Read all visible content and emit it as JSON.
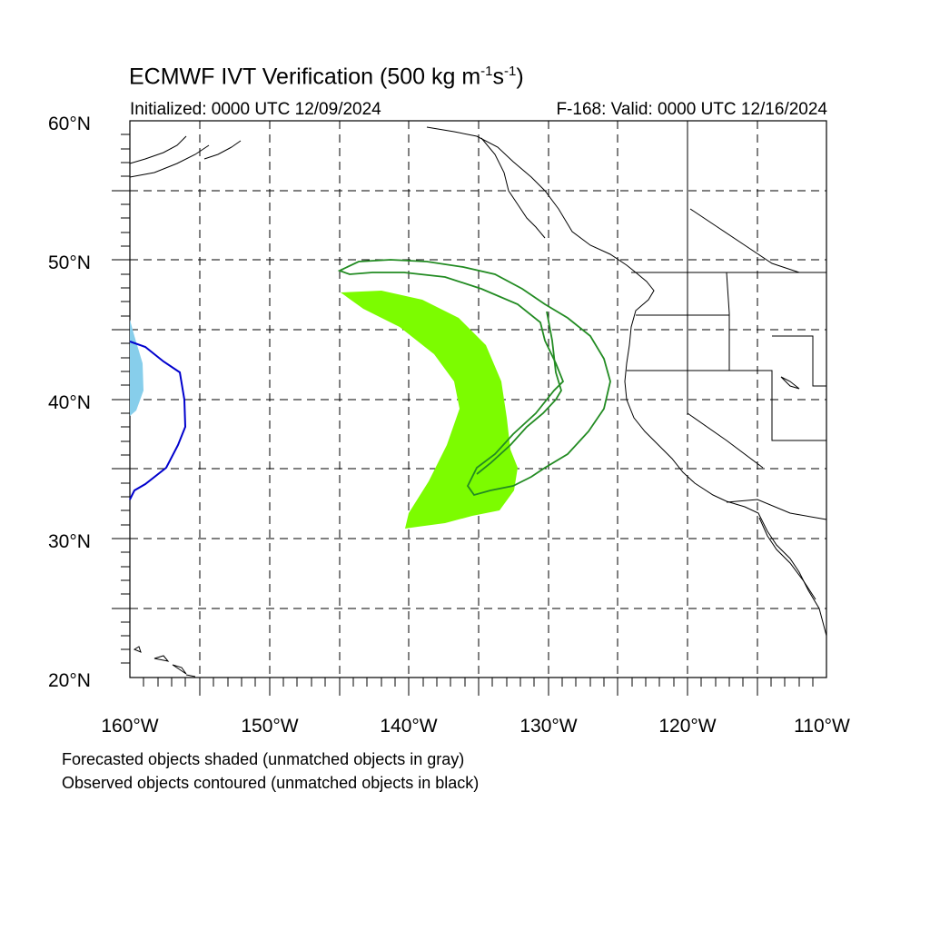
{
  "header": {
    "title_main": "ECMWF IVT Verification (500 kg m",
    "title_sup1": "-1",
    "title_mid": "s",
    "title_sup2": "-1",
    "title_end": ")",
    "initialized": "Initialized: 0000 UTC 12/09/2024",
    "valid": "F-168: Valid: 0000 UTC 12/16/2024"
  },
  "map": {
    "lon_range": [
      -160,
      -110
    ],
    "lat_range": [
      20,
      60
    ],
    "lat_labels": [
      "20°N",
      "30°N",
      "40°N",
      "50°N",
      "60°N"
    ],
    "lon_labels": [
      "160°W",
      "150°W",
      "140°W",
      "130°W",
      "120°W",
      "110°W"
    ],
    "grid": "dashed every 5°",
    "colors": {
      "forecast_matched": "#7cfc00",
      "forecast_unmatched_edge": "#87ceeb",
      "observed_matched": "#228b22",
      "observed_edge": "#0000cd",
      "coast": "#000000"
    }
  },
  "legend": {
    "line1": "Forecasted objects shaded (unmatched objects in gray)",
    "line2": "Observed objects contoured (unmatched objects in black)"
  }
}
